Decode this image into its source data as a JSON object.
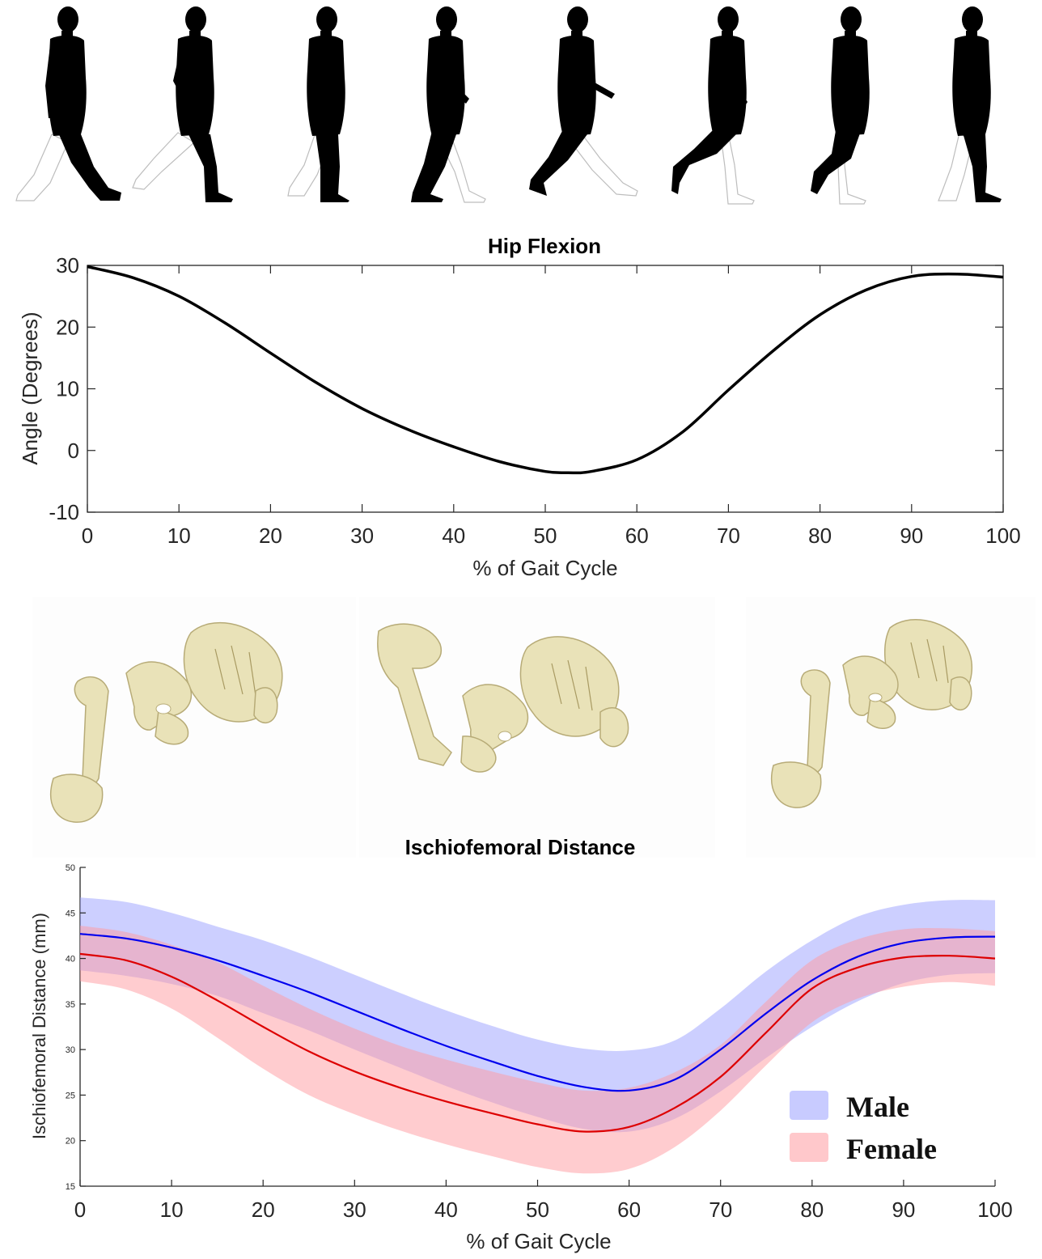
{
  "chart_data": [
    {
      "type": "line",
      "title": "Hip Flexion",
      "xlabel": "% of Gait Cycle",
      "ylabel": "Angle (Degrees)",
      "xlim": [
        0,
        100
      ],
      "ylim": [
        -10,
        30
      ],
      "xticks": [
        0,
        10,
        20,
        30,
        40,
        50,
        60,
        70,
        80,
        90,
        100
      ],
      "yticks": [
        -10,
        0,
        10,
        20,
        30
      ],
      "grid": false,
      "series": [
        {
          "color": "#000000",
          "x": [
            0,
            5,
            10,
            15,
            20,
            25,
            30,
            35,
            40,
            45,
            50,
            52.5,
            55,
            60,
            65,
            70,
            75,
            80,
            85,
            90,
            95,
            100
          ],
          "y": [
            29.8,
            28.0,
            25.0,
            20.7,
            15.8,
            11.0,
            6.8,
            3.4,
            0.6,
            -1.8,
            -3.4,
            -3.6,
            -3.4,
            -1.5,
            3.0,
            9.8,
            16.3,
            22.0,
            26.0,
            28.2,
            28.6,
            28.1
          ]
        }
      ]
    },
    {
      "type": "area",
      "title": "Ischiofemoral Distance",
      "xlabel": "% of Gait Cycle",
      "ylabel": "Ischiofemoral Distance (mm)",
      "xlim": [
        0,
        100
      ],
      "ylim": [
        15,
        50
      ],
      "xticks": [
        0,
        10,
        20,
        30,
        40,
        50,
        60,
        70,
        80,
        90,
        100
      ],
      "yticks": [
        15,
        20,
        25,
        30,
        35,
        40,
        45,
        50
      ],
      "grid": false,
      "legend_position": "bottom-right",
      "series": [
        {
          "name": "Male",
          "color": "#0000ee",
          "band_color": "#9aa0ff",
          "x": [
            0,
            5,
            10,
            15,
            20,
            25,
            30,
            35,
            40,
            45,
            50,
            55,
            60,
            65,
            70,
            75,
            80,
            85,
            90,
            95,
            100
          ],
          "mean": [
            42.7,
            42.2,
            41.2,
            39.8,
            38.1,
            36.3,
            34.3,
            32.3,
            30.4,
            28.7,
            27.1,
            25.9,
            25.5,
            26.7,
            30.0,
            34.0,
            37.6,
            40.2,
            41.7,
            42.3,
            42.4
          ],
          "upper": [
            46.7,
            46.2,
            45.0,
            43.5,
            42.0,
            40.2,
            38.2,
            36.2,
            34.3,
            32.6,
            31.1,
            30.1,
            29.9,
            31.0,
            34.5,
            38.6,
            42.0,
            44.6,
            45.9,
            46.4,
            46.4
          ],
          "lower": [
            38.7,
            38.1,
            37.2,
            35.9,
            34.0,
            32.1,
            30.0,
            28.0,
            26.0,
            24.2,
            22.6,
            21.3,
            21.0,
            22.4,
            25.4,
            29.1,
            32.5,
            35.3,
            37.3,
            38.2,
            38.4
          ]
        },
        {
          "name": "Female",
          "color": "#dd0000",
          "band_color": "#ff9aa0",
          "x": [
            0,
            5,
            10,
            15,
            20,
            25,
            30,
            35,
            40,
            45,
            50,
            55,
            60,
            65,
            70,
            75,
            80,
            85,
            90,
            95,
            100
          ],
          "mean": [
            40.5,
            39.8,
            38.0,
            35.4,
            32.5,
            29.8,
            27.6,
            25.8,
            24.3,
            23.0,
            21.8,
            21.0,
            21.5,
            23.6,
            27.0,
            31.9,
            36.7,
            39.0,
            40.1,
            40.3,
            40.0
          ],
          "upper": [
            43.6,
            42.9,
            41.5,
            39.6,
            37.0,
            34.5,
            32.3,
            30.4,
            28.9,
            27.6,
            26.4,
            25.5,
            25.8,
            27.5,
            30.5,
            35.3,
            39.8,
            42.1,
            43.2,
            43.3,
            43.0
          ],
          "lower": [
            37.5,
            36.6,
            34.5,
            31.3,
            27.9,
            25.0,
            22.9,
            21.1,
            19.6,
            18.3,
            17.1,
            16.4,
            16.9,
            19.3,
            23.3,
            28.3,
            33.0,
            35.6,
            36.9,
            37.4,
            37.0
          ]
        }
      ]
    }
  ]
}
